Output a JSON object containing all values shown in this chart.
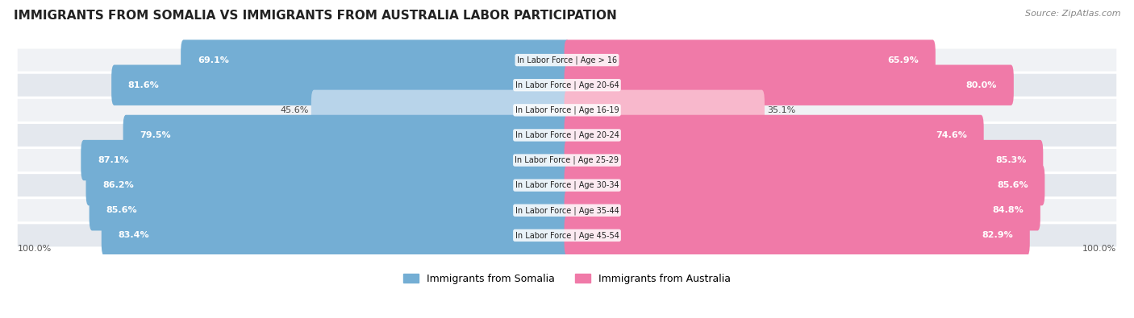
{
  "title": "IMMIGRANTS FROM SOMALIA VS IMMIGRANTS FROM AUSTRALIA LABOR PARTICIPATION",
  "source": "Source: ZipAtlas.com",
  "categories": [
    "In Labor Force | Age > 16",
    "In Labor Force | Age 20-64",
    "In Labor Force | Age 16-19",
    "In Labor Force | Age 20-24",
    "In Labor Force | Age 25-29",
    "In Labor Force | Age 30-34",
    "In Labor Force | Age 35-44",
    "In Labor Force | Age 45-54"
  ],
  "somalia_values": [
    69.1,
    81.6,
    45.6,
    79.5,
    87.1,
    86.2,
    85.6,
    83.4
  ],
  "australia_values": [
    65.9,
    80.0,
    35.1,
    74.6,
    85.3,
    85.6,
    84.8,
    82.9
  ],
  "somalia_color": "#74aed4",
  "australia_color": "#f07aa8",
  "somalia_color_light": "#b8d4ea",
  "australia_color_light": "#f8b8cc",
  "row_bg_odd": "#f0f2f5",
  "row_bg_even": "#e4e8ee",
  "background_color": "#ffffff",
  "title_fontsize": 11,
  "source_fontsize": 8,
  "value_fontsize": 8,
  "cat_fontsize": 7,
  "legend_fontsize": 9,
  "legend_somalia": "Immigrants from Somalia",
  "legend_australia": "Immigrants from Australia",
  "axis_label_fontsize": 8
}
